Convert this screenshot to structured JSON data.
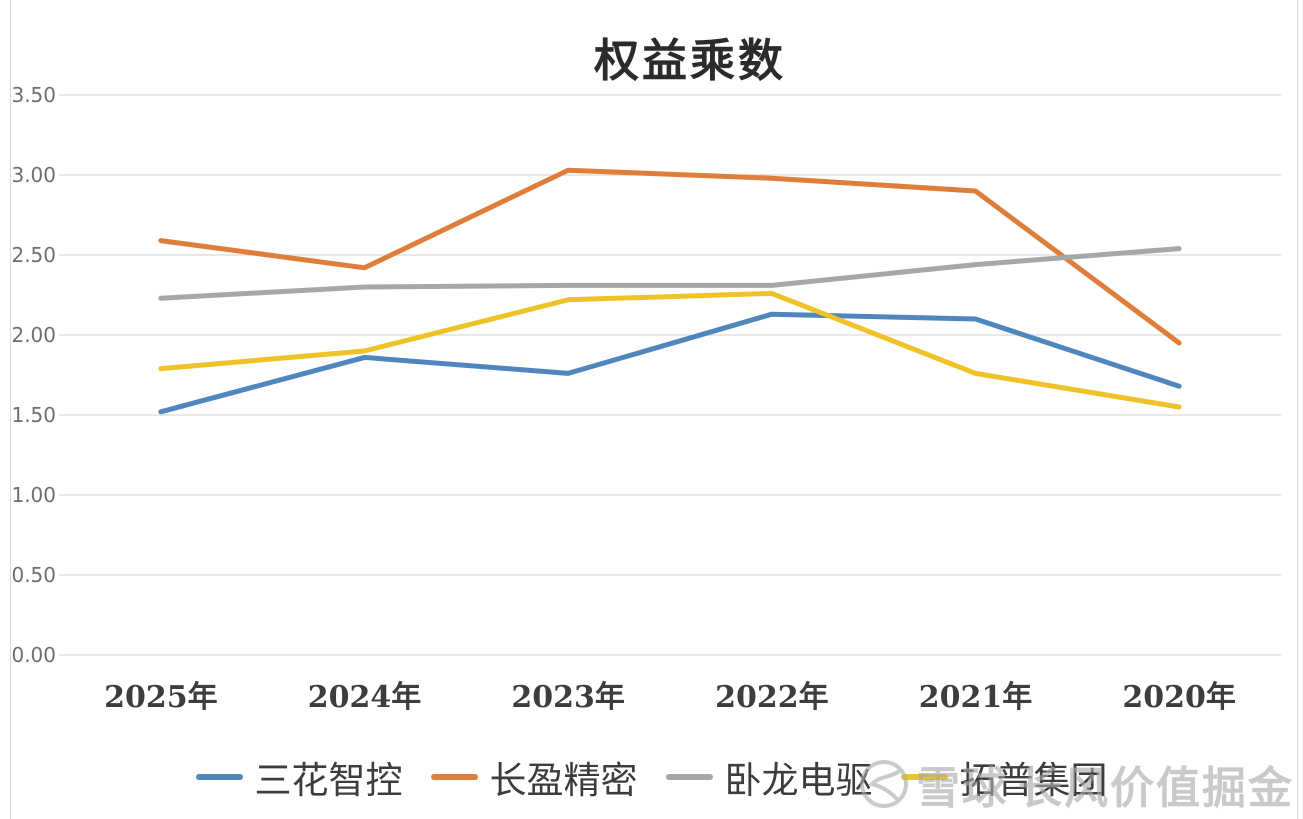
{
  "chart_data": {
    "type": "line",
    "title": "权益乘数",
    "categories": [
      "2025年",
      "2024年",
      "2023年",
      "2022年",
      "2021年",
      "2020年"
    ],
    "series": [
      {
        "name": "三花智控",
        "color": "#4E86BD",
        "values": [
          1.52,
          1.86,
          1.76,
          2.13,
          2.1,
          1.68
        ]
      },
      {
        "name": "长盈精密",
        "color": "#DF7D3B",
        "values": [
          2.59,
          2.42,
          3.03,
          2.98,
          2.9,
          1.95
        ]
      },
      {
        "name": "卧龙电驱",
        "color": "#A7A7A7",
        "values": [
          2.23,
          2.3,
          2.31,
          2.31,
          2.44,
          2.54
        ]
      },
      {
        "name": "拓普集团",
        "color": "#EFC327",
        "values": [
          1.79,
          1.9,
          2.22,
          2.26,
          1.76,
          1.55
        ]
      }
    ],
    "xlabel": "",
    "ylabel": "",
    "ylim": [
      0,
      3.5
    ],
    "ytick_step": 0.5,
    "yticklabels": [
      "0.00",
      "0.50",
      "1.00",
      "1.50",
      "2.00",
      "2.50",
      "3.00",
      "3.50"
    ],
    "grid": true,
    "legend_position": "bottom",
    "gridline_color": "#d9d9d9"
  },
  "watermark": {
    "logo": "snowball-logo",
    "brand": "雪球",
    "account": "长风价值掘金"
  }
}
